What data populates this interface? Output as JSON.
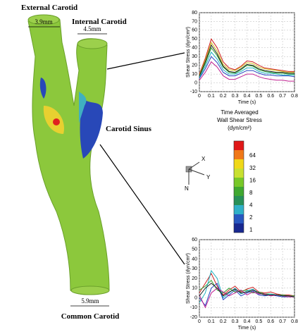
{
  "figure": {
    "external_label": "External Carotid",
    "internal_label": "Internal Carotid",
    "external_diameter": "3.9mm",
    "internal_diameter": "4.5mm",
    "sinus_label": "Carotid Sinus",
    "common_diameter": "5.9mm",
    "common_label": "Common Carotid",
    "axis_x": "X",
    "axis_y": "Y",
    "axis_z": "N"
  },
  "colorbar": {
    "title_lines": [
      "Time Averaged",
      "Wall Shear Stress",
      "(dyn/cm²)"
    ],
    "ticks": [
      64,
      32,
      16,
      8,
      4,
      2,
      1
    ],
    "colors": [
      "#e01818",
      "#f07818",
      "#f0d818",
      "#c8e030",
      "#78c828",
      "#40a830",
      "#289058",
      "#30b0c8",
      "#2858c0",
      "#182890"
    ]
  },
  "chart_data": [
    {
      "type": "line",
      "xlabel": "Time (s)",
      "ylabel": "Shear Stress (dyn/cm²)",
      "xlim": [
        0,
        0.8
      ],
      "xticks": [
        0,
        0.1,
        0.2,
        0.3,
        0.4,
        0.5,
        0.6,
        0.7,
        0.8
      ],
      "ylim": [
        -10,
        80
      ],
      "yticks": [
        -10,
        0,
        10,
        20,
        30,
        40,
        50,
        60,
        70,
        80
      ],
      "grid": true,
      "x": [
        0,
        0.05,
        0.1,
        0.15,
        0.2,
        0.25,
        0.3,
        0.35,
        0.4,
        0.45,
        0.5,
        0.55,
        0.6,
        0.65,
        0.7,
        0.75,
        0.8
      ],
      "series": [
        {
          "color": "#d02020",
          "values": [
            10,
            28,
            50,
            40,
            24,
            17,
            15,
            19,
            25,
            24,
            20,
            17,
            16,
            15,
            14,
            13,
            13
          ]
        },
        {
          "color": "#d0c020",
          "values": [
            9,
            26,
            46,
            36,
            21,
            15,
            14,
            18,
            23,
            22,
            18,
            16,
            15,
            14,
            13,
            12,
            12
          ]
        },
        {
          "color": "#30a030",
          "values": [
            7,
            22,
            40,
            31,
            18,
            12,
            11,
            15,
            20,
            19,
            15,
            13,
            12,
            11,
            11,
            10,
            10
          ]
        },
        {
          "color": "#20b0c0",
          "values": [
            6,
            19,
            35,
            27,
            15,
            10,
            10,
            13,
            17,
            17,
            13,
            11,
            11,
            10,
            9,
            9,
            9
          ]
        },
        {
          "color": "#2040c0",
          "values": [
            5,
            16,
            30,
            23,
            12,
            8,
            8,
            11,
            14,
            14,
            11,
            9,
            9,
            8,
            8,
            8,
            7
          ]
        },
        {
          "color": "#c02090",
          "values": [
            3,
            12,
            24,
            18,
            8,
            4,
            4,
            7,
            10,
            10,
            7,
            5,
            4,
            3,
            3,
            2,
            2
          ]
        },
        {
          "color": "#202020",
          "values": [
            8,
            24,
            43,
            33,
            19,
            13,
            12,
            16,
            21,
            20,
            16,
            14,
            13,
            12,
            12,
            11,
            11
          ]
        }
      ]
    },
    {
      "type": "line",
      "xlabel": "Time (s)",
      "ylabel": "Shear Stress (dyn/cm²)",
      "xlim": [
        0,
        0.8
      ],
      "xticks": [
        0,
        0.1,
        0.2,
        0.3,
        0.4,
        0.5,
        0.6,
        0.7,
        0.8
      ],
      "ylim": [
        -20,
        60
      ],
      "yticks": [
        -20,
        -10,
        0,
        10,
        20,
        30,
        40,
        50,
        60
      ],
      "grid": true,
      "x": [
        0,
        0.05,
        0.1,
        0.15,
        0.2,
        0.25,
        0.3,
        0.35,
        0.4,
        0.45,
        0.5,
        0.55,
        0.6,
        0.65,
        0.7,
        0.75,
        0.8
      ],
      "series": [
        {
          "color": "#d02020",
          "values": [
            5,
            15,
            25,
            12,
            3,
            8,
            12,
            6,
            9,
            11,
            6,
            5,
            6,
            4,
            3,
            3,
            2
          ]
        },
        {
          "color": "#2040c0",
          "values": [
            0,
            -8,
            10,
            15,
            -2,
            3,
            8,
            2,
            5,
            7,
            3,
            2,
            3,
            2,
            1,
            1,
            1
          ]
        },
        {
          "color": "#30a030",
          "values": [
            8,
            12,
            18,
            8,
            5,
            10,
            6,
            7,
            8,
            5,
            6,
            4,
            4,
            3,
            3,
            2,
            2
          ]
        },
        {
          "color": "#20b0c0",
          "values": [
            -5,
            5,
            28,
            20,
            0,
            5,
            10,
            4,
            7,
            9,
            5,
            3,
            4,
            3,
            2,
            2,
            1
          ]
        },
        {
          "color": "#c02090",
          "values": [
            3,
            -10,
            5,
            10,
            6,
            2,
            5,
            8,
            3,
            6,
            4,
            4,
            2,
            3,
            2,
            1,
            1
          ]
        },
        {
          "color": "#202020",
          "values": [
            2,
            10,
            15,
            10,
            2,
            6,
            9,
            5,
            6,
            8,
            5,
            3,
            3,
            3,
            2,
            2,
            1
          ]
        }
      ]
    }
  ]
}
